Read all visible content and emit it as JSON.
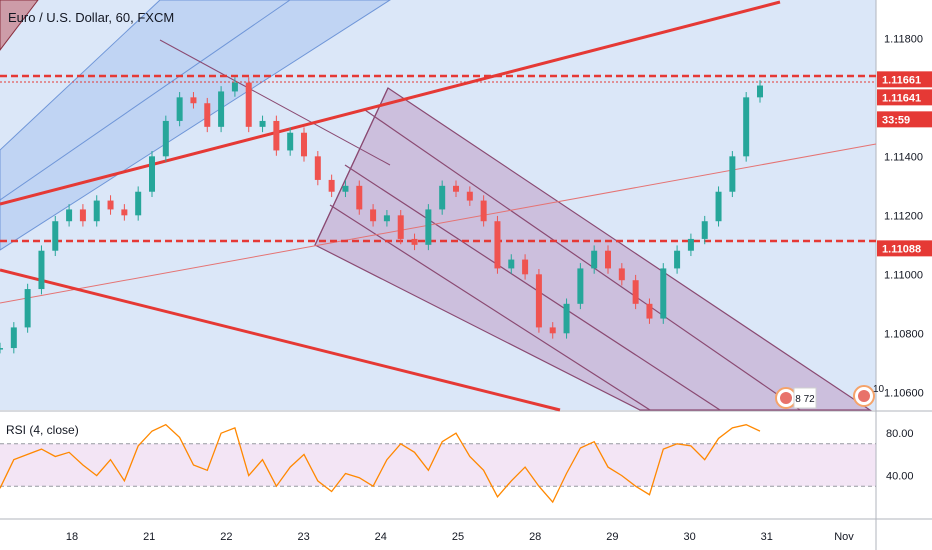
{
  "chart_data": {
    "type": "line",
    "title": "Euro / U.S. Dollar, 60, FXCM",
    "symbol": "Euro / U.S. Dollar",
    "interval": "60",
    "source": "FXCM",
    "x_labels": [
      "18",
      "21",
      "22",
      "23",
      "24",
      "25",
      "28",
      "29",
      "30",
      "31",
      "Nov"
    ],
    "price_axis": {
      "ticks": [
        "1.11800",
        "1.11600",
        "1.11400",
        "1.11200",
        "1.11000",
        "1.10800",
        "1.10600"
      ],
      "ylim": [
        1.1054,
        1.1193
      ]
    },
    "price_tags": [
      {
        "label": "1.11661",
        "value": 1.11661,
        "color": "#e53935"
      },
      {
        "label": "1.11641",
        "value": 1.11641,
        "color": "#e53935"
      },
      {
        "label": "33:59",
        "value": null,
        "color": "#e53935"
      },
      {
        "label": "1.11088",
        "value": 1.11088,
        "color": "#e53935"
      }
    ],
    "horizontal_levels": [
      1.11661,
      1.11088
    ],
    "price_series": {
      "name": "EUR/USD",
      "x": [
        0,
        3,
        6,
        9,
        12,
        15,
        18,
        21,
        24,
        27,
        30,
        33,
        36,
        39,
        42,
        45,
        48,
        51,
        54,
        57,
        60,
        63,
        66,
        69,
        72,
        75,
        78,
        81,
        84,
        87,
        90,
        93,
        96,
        99,
        102,
        105,
        108,
        111,
        114,
        117,
        120,
        123,
        126,
        129,
        132,
        135,
        138,
        141,
        144,
        147,
        150,
        153,
        156,
        159,
        162,
        165
      ],
      "y": [
        1.1075,
        1.1082,
        1.1095,
        1.1108,
        1.1118,
        1.1122,
        1.1118,
        1.1125,
        1.1122,
        1.112,
        1.1128,
        1.114,
        1.1152,
        1.116,
        1.1158,
        1.115,
        1.1162,
        1.1165,
        1.115,
        1.1152,
        1.1142,
        1.1148,
        1.114,
        1.1132,
        1.1128,
        1.113,
        1.1122,
        1.1118,
        1.112,
        1.1112,
        1.111,
        1.1122,
        1.113,
        1.1128,
        1.1125,
        1.1118,
        1.1102,
        1.1105,
        1.11,
        1.1082,
        1.108,
        1.109,
        1.1102,
        1.1108,
        1.1102,
        1.1098,
        1.109,
        1.1085,
        1.1102,
        1.1108,
        1.1112,
        1.1118,
        1.1128,
        1.114,
        1.116,
        1.1164
      ]
    },
    "rsi": {
      "title": "RSI (4, close)",
      "ticks": [
        "80.00",
        "40.00"
      ],
      "levels": [
        70,
        30
      ],
      "ylim": [
        0,
        100
      ],
      "values": [
        28,
        55,
        60,
        65,
        58,
        62,
        50,
        40,
        55,
        35,
        68,
        82,
        88,
        76,
        50,
        45,
        80,
        85,
        40,
        55,
        30,
        48,
        60,
        35,
        25,
        42,
        38,
        30,
        55,
        70,
        62,
        45,
        72,
        80,
        58,
        45,
        20,
        35,
        48,
        30,
        15,
        42,
        66,
        72,
        48,
        40,
        30,
        22,
        65,
        70,
        68,
        55,
        75,
        85,
        88,
        82
      ]
    }
  },
  "colors": {
    "background": "#dbe7f8",
    "pane_border": "#b2b5be",
    "red_line": "#e53935",
    "rsi_line": "#ff8800",
    "rsi_band": "#f3e5f5",
    "channel_fill": "#c7b2d4",
    "channel_stroke": "#8a4a72",
    "blue_channel": "#a9c4ee",
    "bull_candle": "#26a69a",
    "bear_candle": "#ef5350"
  },
  "badges": [
    {
      "label": "8 72"
    },
    {
      "label": "10"
    }
  ]
}
